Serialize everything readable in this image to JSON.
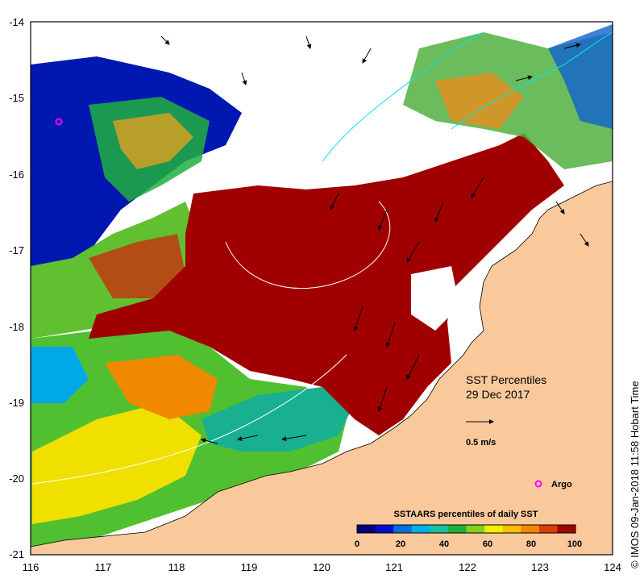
{
  "map": {
    "lon_ticks": [
      "116",
      "117",
      "118",
      "119",
      "120",
      "121",
      "122",
      "123",
      "124"
    ],
    "lat_ticks": [
      "-14",
      "-15",
      "-16",
      "-17",
      "-18",
      "-19",
      "-20",
      "-21"
    ],
    "title_line1": "SST Percentiles",
    "title_line2": "29 Dec 2017",
    "vector_scale_label": "0.5 m/s",
    "argo_label": "Argo",
    "colorbar_title": "SSTAARS percentiles of daily SST",
    "colorbar_ticks": [
      "0",
      "20",
      "40",
      "60",
      "80",
      "100"
    ],
    "credit": "© IMOS 09-Jan-2018 11:58 Hobart Time",
    "colors": {
      "land": "#f9c89b",
      "contour": "#00e5ff",
      "argo": "#ff00ff",
      "palette": [
        "#00007a",
        "#0010c8",
        "#0070e0",
        "#00b0e8",
        "#18c0a0",
        "#20b040",
        "#80d020",
        "#f0f000",
        "#f8c000",
        "#f08800",
        "#d84000",
        "#a00000"
      ]
    }
  }
}
